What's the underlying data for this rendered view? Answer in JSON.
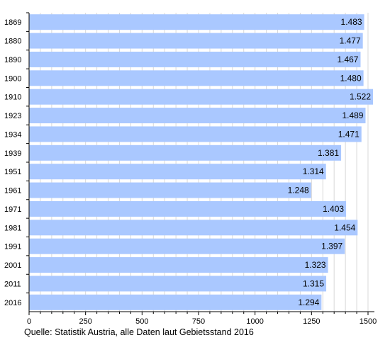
{
  "chart_data": {
    "type": "bar",
    "orientation": "horizontal",
    "categories": [
      "1869",
      "1880",
      "1890",
      "1900",
      "1910",
      "1923",
      "1934",
      "1939",
      "1951",
      "1961",
      "1971",
      "1981",
      "1991",
      "2001",
      "2011",
      "2016"
    ],
    "values": [
      1483,
      1477,
      1467,
      1480,
      1522,
      1489,
      1471,
      1381,
      1314,
      1248,
      1403,
      1454,
      1397,
      1323,
      1315,
      1294
    ],
    "value_labels": [
      "1.483",
      "1.477",
      "1.467",
      "1.480",
      "1.522",
      "1.489",
      "1.471",
      "1.381",
      "1.314",
      "1.248",
      "1.403",
      "1.454",
      "1.397",
      "1.323",
      "1.315",
      "1.294"
    ],
    "xlim": [
      0,
      1500
    ],
    "xticks": [
      0,
      250,
      500,
      750,
      1000,
      1250,
      1500
    ],
    "xtick_labels": [
      "0",
      "250",
      "500",
      "750",
      "1000",
      "1250",
      "1500"
    ],
    "grid": "vertical",
    "bar_color": "#aac8ff",
    "title": "",
    "xlabel": "",
    "ylabel": ""
  },
  "source_note": "Quelle: Statistik Austria, alle Daten laut Gebietsstand 2016"
}
